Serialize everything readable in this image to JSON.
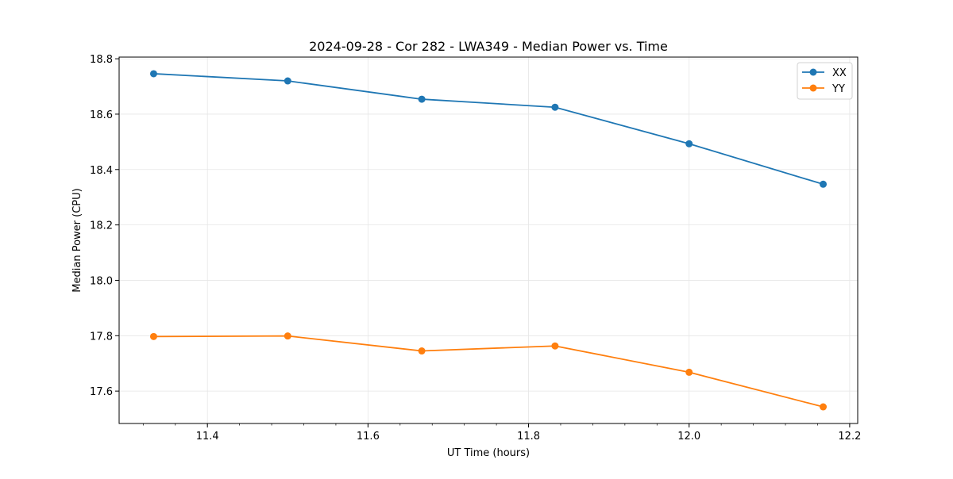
{
  "chart_data": {
    "type": "line",
    "title": "2024-09-28 - Cor 282 - LWA349 - Median Power vs. Time",
    "xlabel": "UT Time (hours)",
    "ylabel": "Median Power (CPU)",
    "xlim": [
      11.29,
      12.21
    ],
    "ylim": [
      17.483,
      18.806
    ],
    "xticks": [
      11.4,
      11.6,
      11.8,
      12.0,
      12.2
    ],
    "xtick_labels": [
      "11.4",
      "11.6",
      "11.8",
      "12.0",
      "12.2"
    ],
    "x_minor_step": 0.04,
    "yticks": [
      17.6,
      17.8,
      18.0,
      18.2,
      18.4,
      18.6,
      18.8
    ],
    "ytick_labels": [
      "17.6",
      "17.8",
      "18.0",
      "18.2",
      "18.4",
      "18.6",
      "18.8"
    ],
    "grid": true,
    "legend_position": "top-right",
    "x": [
      11.333,
      11.5,
      11.667,
      11.833,
      12.0,
      12.167
    ],
    "series": [
      {
        "name": "XX",
        "color": "#1f77b4",
        "values": [
          18.746,
          18.72,
          18.654,
          18.625,
          18.493,
          18.347
        ]
      },
      {
        "name": "YY",
        "color": "#ff7f0e",
        "values": [
          17.797,
          17.799,
          17.745,
          17.763,
          17.668,
          17.543
        ]
      }
    ]
  }
}
